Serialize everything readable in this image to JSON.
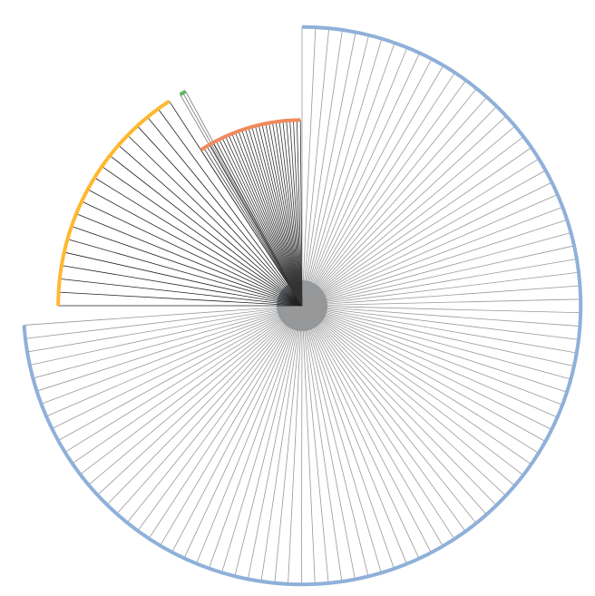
{
  "chart_data": {
    "type": "radial-sunburst",
    "title": "",
    "segments": [
      {
        "name": "",
        "color": "#8fb0d9",
        "start_deg": 0,
        "end_deg": 266,
        "radius_ratio": 0.96,
        "spokes": 96,
        "spoke_color": "#999999"
      },
      {
        "name": "",
        "color": "#ffb830",
        "start_deg": 270,
        "end_deg": 327,
        "radius_ratio": 0.84,
        "spokes": 18,
        "spoke_color": "#222222"
      },
      {
        "name": "",
        "color": "#5cb85c",
        "start_deg": 330,
        "end_deg": 331.5,
        "radius_ratio": 0.84,
        "spokes": 2,
        "spoke_color": "#777777"
      },
      {
        "name": "",
        "color": "#f08a5d",
        "start_deg": 327,
        "end_deg": 359.5,
        "radius_ratio": 0.64,
        "spokes": 30,
        "spoke_color": "#333333"
      }
    ]
  }
}
